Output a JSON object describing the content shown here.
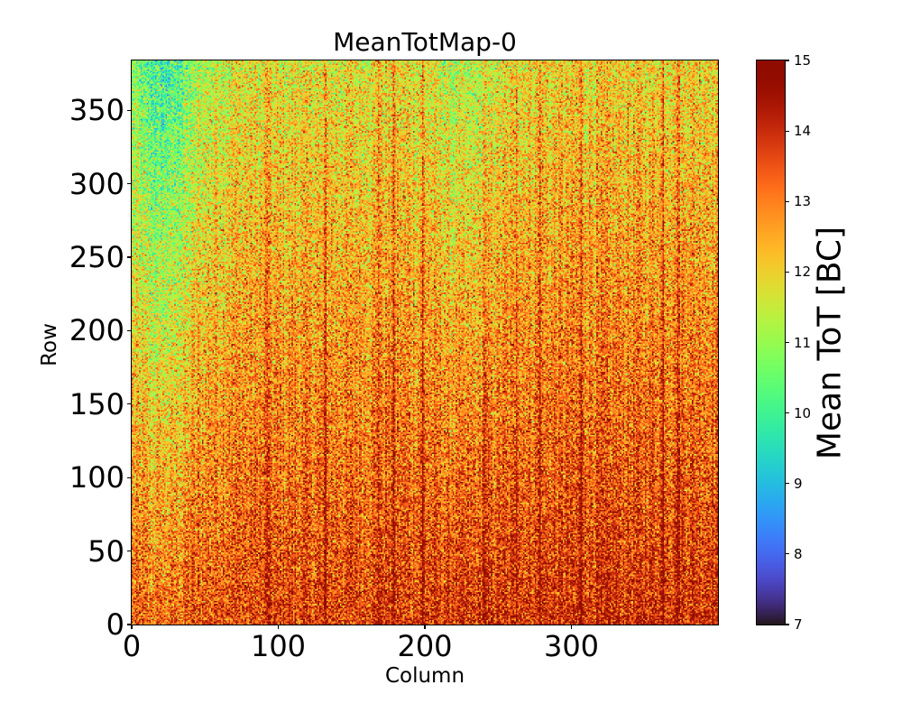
{
  "chart_data": {
    "type": "heatmap",
    "title": "MeanTotMap-0",
    "xlabel": "Column",
    "ylabel": "Row",
    "xlim": [
      0,
      400
    ],
    "ylim": [
      0,
      384
    ],
    "x_ticks": [
      0,
      100,
      200,
      300
    ],
    "y_ticks": [
      0,
      50,
      100,
      150,
      200,
      250,
      300,
      350
    ],
    "colormap": "turbo",
    "colorbar": {
      "label": "Mean ToT [BC]",
      "vmin": 7,
      "vmax": 15,
      "ticks": [
        7,
        8,
        9,
        10,
        11,
        12,
        13,
        14,
        15
      ]
    },
    "grid_shape": {
      "columns": 400,
      "rows": 384
    },
    "value_description": "Noisy per-pixel mean ToT mostly between 10 and 15; lower values (~10-11) near top-left, higher values (~13.5-15) toward lower rows and right side, with darker vertical column stripes.",
    "dark_column_stripes": [
      92,
      132,
      168,
      178,
      198,
      240,
      262,
      278,
      306,
      362,
      372
    ]
  }
}
